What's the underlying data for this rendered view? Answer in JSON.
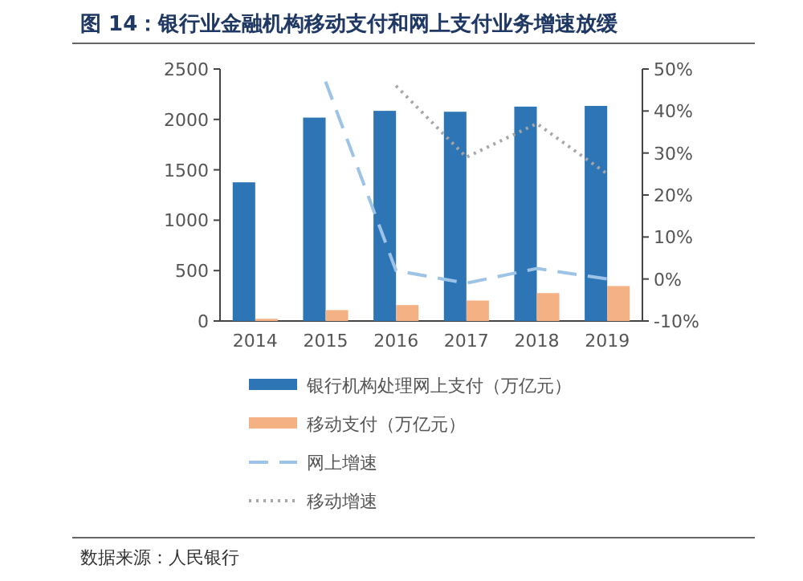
{
  "chart_data": {
    "type": "bar",
    "title": "图 14：银行业金融机构移动支付和网上支付业务增速放缓",
    "categories": [
      "2014",
      "2015",
      "2016",
      "2017",
      "2018",
      "2019"
    ],
    "series": [
      {
        "name": "银行机构处理网上支付（万亿元）",
        "color": "#2e75b6",
        "values": [
          1376,
          2018,
          2085,
          2076,
          2127,
          2134
        ]
      },
      {
        "name": "移动支付（万亿元）",
        "color": "#f4b183",
        "values": [
          22,
          108,
          158,
          203,
          277,
          347
        ]
      },
      {
        "name": "网上增速",
        "type": "line",
        "axis": "y2",
        "line_style": "dashed",
        "color": "#9dc3e6",
        "values": [
          null,
          47,
          2,
          -1,
          2.5,
          0
        ]
      },
      {
        "name": "移动增速",
        "type": "line",
        "axis": "y2",
        "line_style": "dotted",
        "color": "#a6a6a6",
        "values": [
          null,
          null,
          46,
          29,
          37,
          25
        ]
      }
    ],
    "ylim": [
      0,
      2500
    ],
    "yticks": [
      0,
      500,
      1000,
      1500,
      2000,
      2500
    ],
    "y2lim": [
      -10,
      50
    ],
    "y2ticks": [
      {
        "value": -10,
        "label": "-10%"
      },
      {
        "value": 0,
        "label": "0%"
      },
      {
        "value": 10,
        "label": "10%"
      },
      {
        "value": 20,
        "label": "20%"
      },
      {
        "value": 30,
        "label": "30%"
      },
      {
        "value": 40,
        "label": "40%"
      },
      {
        "value": 50,
        "label": "50%"
      }
    ],
    "legend": "bottom",
    "annotations": [
      "数据来源：人民银行"
    ]
  }
}
